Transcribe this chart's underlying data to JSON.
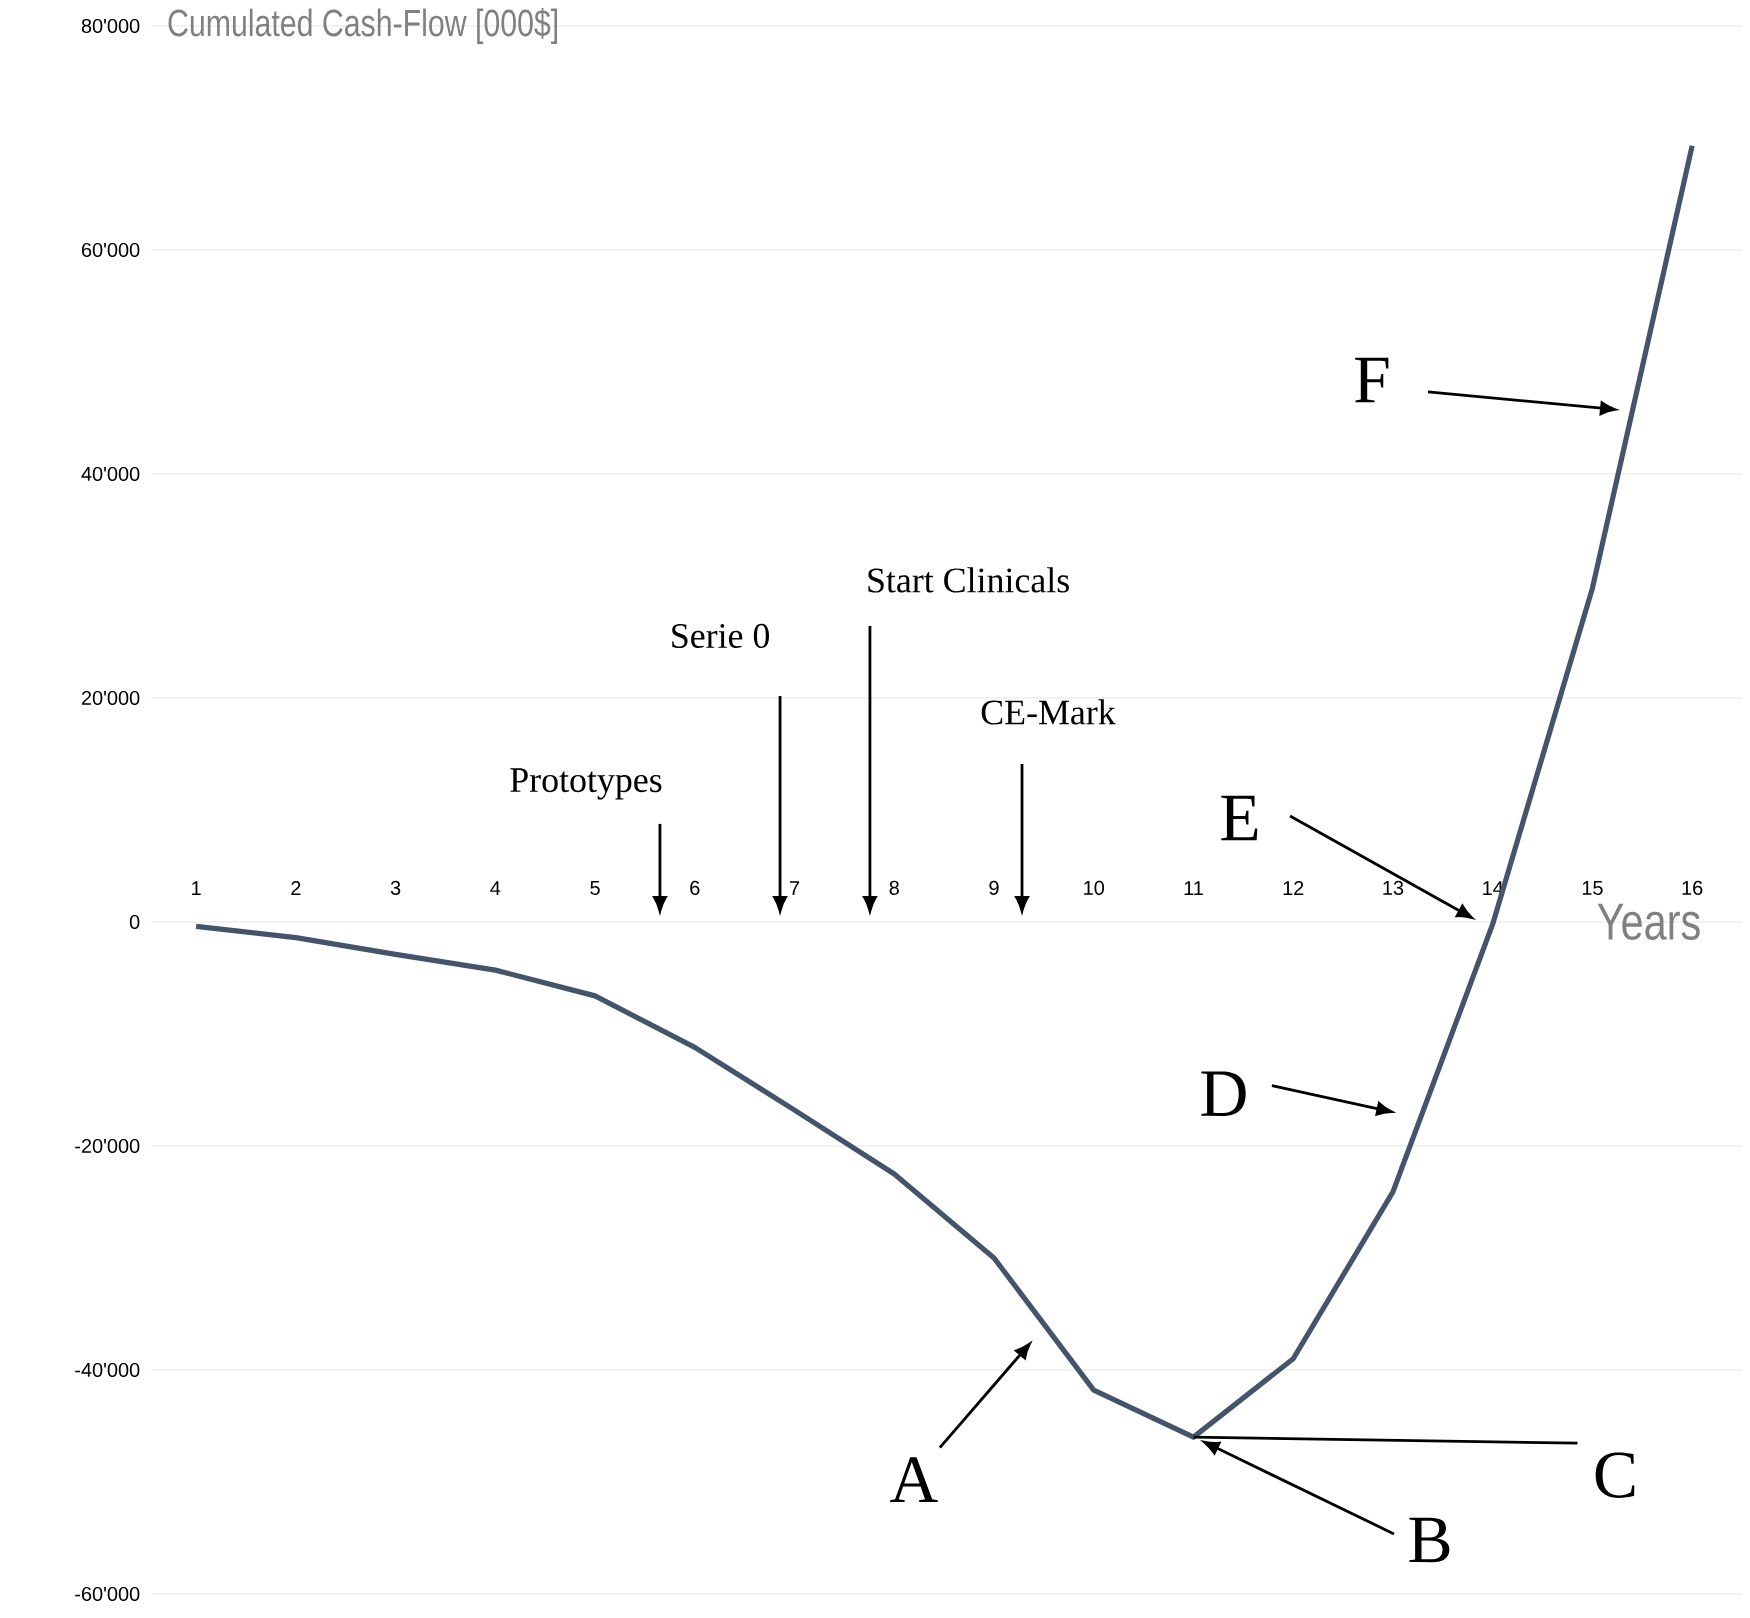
{
  "chart_data": {
    "type": "line",
    "title": "Cumulated Cash-Flow [000$]",
    "xlabel": "Years",
    "x": [
      1,
      2,
      3,
      4,
      5,
      6,
      7,
      8,
      9,
      10,
      11,
      12,
      13,
      14,
      15,
      16
    ],
    "series": [
      {
        "color": "#44546a",
        "values": [
          -400,
          -1400,
          -2900,
          -4300,
          -6600,
          -11200,
          -16800,
          -22500,
          -30000,
          -41800,
          -46000,
          -39000,
          -24100,
          -200,
          29800,
          69300
        ]
      }
    ],
    "xlim": [
      0.55,
      16.5
    ],
    "xticks": [
      1,
      2,
      3,
      4,
      5,
      6,
      7,
      8,
      9,
      10,
      11,
      12,
      13,
      14,
      15,
      16
    ],
    "ylim": [
      -60000,
      80000
    ],
    "yticks": [
      {
        "value": -60000,
        "label": "-60'000"
      },
      {
        "value": -40000,
        "label": "-40'000"
      },
      {
        "value": -20000,
        "label": "-20'000"
      },
      {
        "value": 0,
        "label": "0"
      },
      {
        "value": 20000,
        "label": "20'000"
      },
      {
        "value": 40000,
        "label": "40'000"
      },
      {
        "value": 60000,
        "label": "60'000"
      },
      {
        "value": 80000,
        "label": "80'000"
      }
    ],
    "grid": "y",
    "marker": "none",
    "line_style": "solid",
    "annotations": [
      "Prototypes",
      "Serie 0",
      "Start Clinicals",
      "CE-Mark",
      {
        "text": "A",
        "x": 9.48,
        "y": -36400
      },
      "B",
      {
        "text": "C",
        "x": 11,
        "y": -46000
      },
      {
        "text": "D",
        "x": 13.17,
        "y": -17300
      },
      "E",
      "F"
    ]
  }
}
